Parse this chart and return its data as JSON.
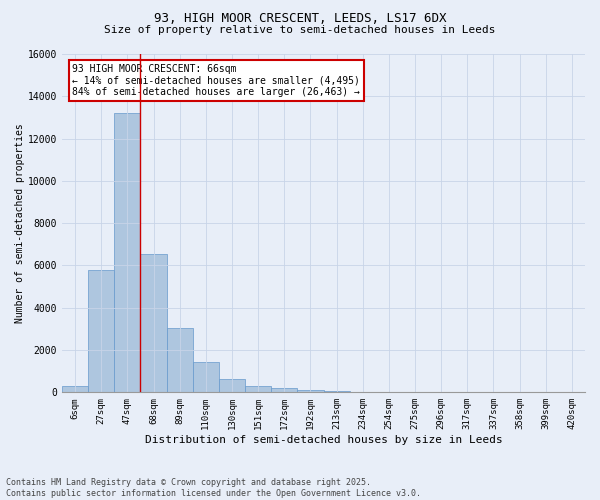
{
  "title_line1": "93, HIGH MOOR CRESCENT, LEEDS, LS17 6DX",
  "title_line2": "Size of property relative to semi-detached houses in Leeds",
  "xlabel": "Distribution of semi-detached houses by size in Leeds",
  "ylabel": "Number of semi-detached properties",
  "footer_line1": "Contains HM Land Registry data © Crown copyright and database right 2025.",
  "footer_line2": "Contains public sector information licensed under the Open Government Licence v3.0.",
  "categories": [
    "6sqm",
    "27sqm",
    "47sqm",
    "68sqm",
    "89sqm",
    "110sqm",
    "130sqm",
    "151sqm",
    "172sqm",
    "192sqm",
    "213sqm",
    "234sqm",
    "254sqm",
    "275sqm",
    "296sqm",
    "317sqm",
    "337sqm",
    "358sqm",
    "399sqm",
    "420sqm"
  ],
  "values": [
    280,
    5800,
    13200,
    6550,
    3050,
    1450,
    650,
    300,
    200,
    130,
    80,
    0,
    0,
    0,
    0,
    0,
    0,
    0,
    0,
    0
  ],
  "bar_color": "#aec6df",
  "bar_edge_color": "#6699cc",
  "highlight_bar_index": 3,
  "annotation_title": "93 HIGH MOOR CRESCENT: 66sqm",
  "annotation_line2": "← 14% of semi-detached houses are smaller (4,495)",
  "annotation_line3": "84% of semi-detached houses are larger (26,463) →",
  "annotation_box_color": "#ffffff",
  "annotation_box_edge": "#cc0000",
  "vline_color": "#cc0000",
  "ylim": [
    0,
    16000
  ],
  "yticks": [
    0,
    2000,
    4000,
    6000,
    8000,
    10000,
    12000,
    14000,
    16000
  ],
  "grid_color": "#c8d4e8",
  "bg_color": "#e8eef8",
  "title_fontsize": 9,
  "subtitle_fontsize": 8
}
